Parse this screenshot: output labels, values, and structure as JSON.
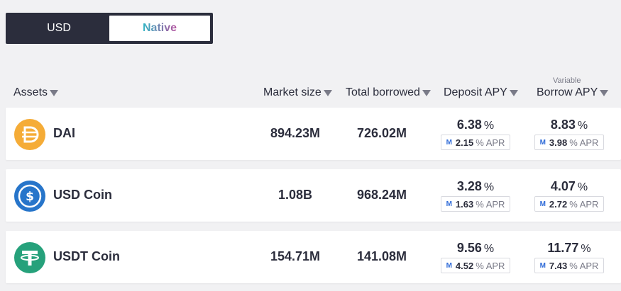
{
  "toggle": {
    "usd_label": "USD",
    "native_label": "Native"
  },
  "header": {
    "assets": "Assets",
    "market_size": "Market size",
    "total_borrowed": "Total borrowed",
    "deposit_apy": "Deposit APY",
    "borrow_apy": "Borrow APY",
    "borrow_apy_sub": "Variable"
  },
  "assets": [
    {
      "name": "DAI",
      "icon": "dai-icon",
      "icon_color": "#f5ac37",
      "market_size": "894.23M",
      "total_borrowed": "726.02M",
      "deposit_apy": "6.38",
      "deposit_apr": "2.15",
      "borrow_apy": "8.83",
      "borrow_apr": "3.98"
    },
    {
      "name": "USD Coin",
      "icon": "usdc-icon",
      "icon_color": "#2775ca",
      "market_size": "1.08B",
      "total_borrowed": "968.24M",
      "deposit_apy": "3.28",
      "deposit_apr": "1.63",
      "borrow_apy": "4.07",
      "borrow_apr": "2.72"
    },
    {
      "name": "USDT Coin",
      "icon": "usdt-icon",
      "icon_color": "#26a17b",
      "market_size": "154.71M",
      "total_borrowed": "141.08M",
      "deposit_apy": "9.56",
      "deposit_apr": "4.52",
      "borrow_apy": "11.77",
      "borrow_apr": "7.43"
    }
  ],
  "units": {
    "percent": "%",
    "apr": "% APR",
    "reward_mark": "M"
  }
}
